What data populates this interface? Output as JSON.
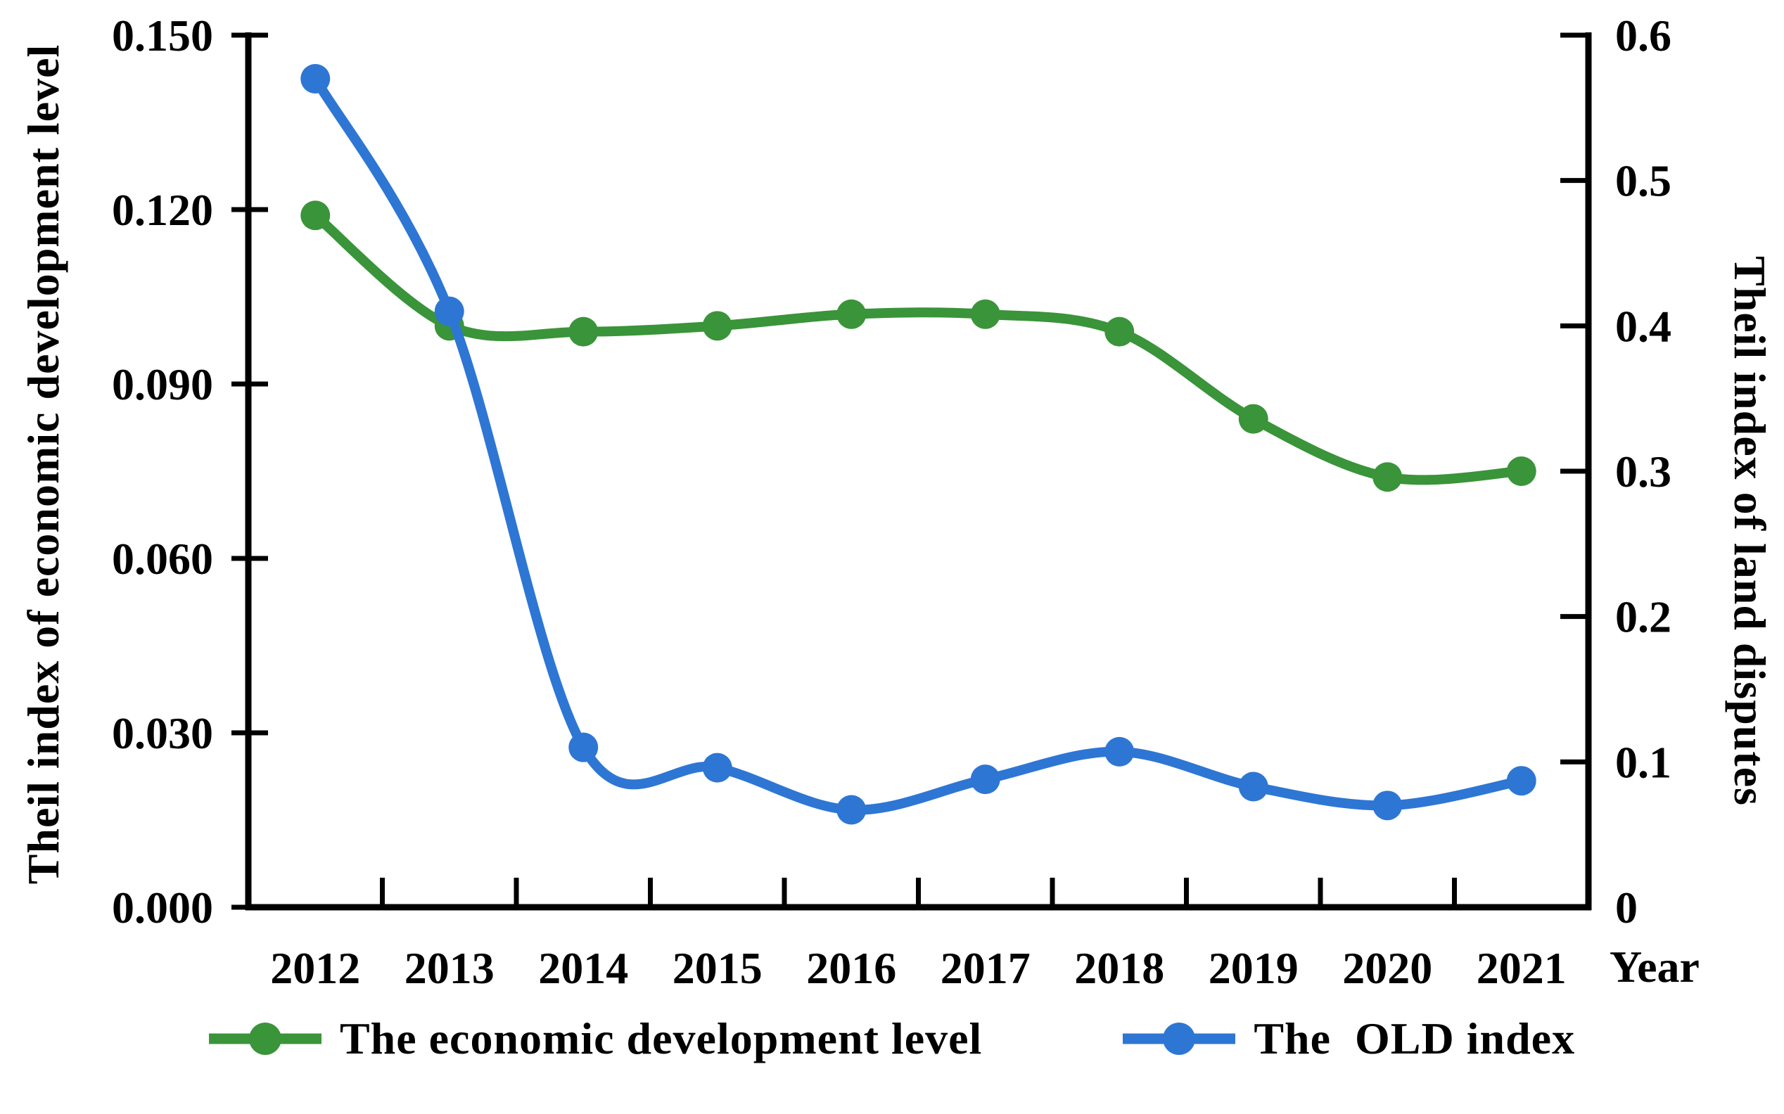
{
  "figure": {
    "background": "#ffffff",
    "axis_color": "#000000",
    "text_color": "#000000"
  },
  "chart_data": {
    "type": "line",
    "smooth_lines": true,
    "grid": false,
    "legend_position": "bottom",
    "categories": [
      "2012",
      "2013",
      "2014",
      "2015",
      "2016",
      "2017",
      "2018",
      "2019",
      "2020",
      "2021"
    ],
    "x_axis_label": "Year",
    "left_axis": {
      "title": "Theil index of economic development level",
      "min": 0,
      "max": 0.15,
      "tick_step": 0.03,
      "tick_labels": [
        "0.000",
        "0.030",
        "0.060",
        "0.090",
        "0.120",
        "0.150"
      ]
    },
    "right_axis": {
      "title": "Theil index of land disputes",
      "min": 0,
      "max": 0.6,
      "tick_step": 0.1,
      "tick_labels": [
        "0",
        "0.1",
        "0.2",
        "0.3",
        "0.4",
        "0.5",
        "0.6"
      ]
    },
    "series": [
      {
        "name": "The economic development level",
        "axis": "left",
        "color": "#3a9439",
        "values": [
          0.119,
          0.1,
          0.099,
          0.1,
          0.102,
          0.102,
          0.099,
          0.084,
          0.074,
          0.075
        ]
      },
      {
        "name": "The  OLD index",
        "axis": "right",
        "color": "#2e76d4",
        "values": [
          0.57,
          0.41,
          0.11,
          0.096,
          0.067,
          0.088,
          0.107,
          0.083,
          0.07,
          0.087
        ]
      }
    ]
  }
}
